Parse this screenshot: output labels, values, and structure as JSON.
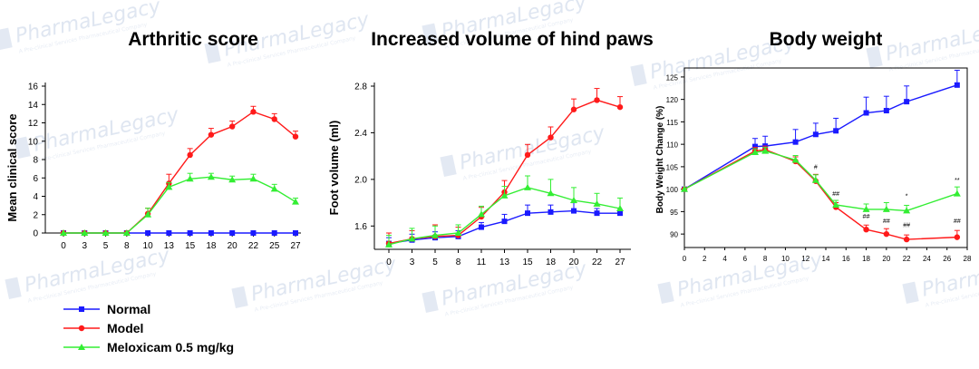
{
  "watermark": {
    "brand": "PharmaLegacy",
    "tagline": "A Pre-clinical Services Pharmaceutical Company"
  },
  "series_colors": {
    "Normal": "#1a1aff",
    "Model": "#ff1a1a",
    "Meloxicam 0.5 mg/kg": "#33ee33"
  },
  "legend": [
    {
      "name": "Normal",
      "marker": "square",
      "color": "#1a1aff"
    },
    {
      "name": "Model",
      "marker": "circle",
      "color": "#ff1a1a"
    },
    {
      "name": "Meloxicam 0.5 mg/kg",
      "marker": "triangle",
      "color": "#33ee33"
    }
  ],
  "chart_data": [
    {
      "type": "line",
      "title": "Arthritic score",
      "ylabel": "Mean clinical score",
      "xlabel": "",
      "x_scale": "categorical",
      "x": [
        "0",
        "3",
        "5",
        "8",
        "10",
        "13",
        "15",
        "18",
        "20",
        "22",
        "25",
        "27"
      ],
      "yticks": [
        "0",
        "2",
        "4",
        "6",
        "8",
        "10",
        "12",
        "14",
        "16"
      ],
      "ylim": [
        0,
        16
      ],
      "series": [
        {
          "name": "Normal",
          "marker": "square",
          "values": [
            0,
            0,
            0,
            0,
            0,
            0,
            0,
            0,
            0,
            0,
            0,
            0
          ],
          "err": [
            0,
            0,
            0,
            0,
            0,
            0,
            0,
            0,
            0,
            0,
            0,
            0
          ]
        },
        {
          "name": "Model",
          "marker": "circle",
          "values": [
            0,
            0,
            0,
            0,
            2.1,
            5.4,
            8.5,
            10.7,
            11.6,
            13.2,
            12.4,
            10.5
          ],
          "err": [
            0,
            0,
            0,
            0,
            0.6,
            1.0,
            0.7,
            0.7,
            0.6,
            0.6,
            0.6,
            0.6
          ]
        },
        {
          "name": "Meloxicam 0.5 mg/kg",
          "marker": "triangle",
          "values": [
            0,
            0,
            0,
            0,
            2.0,
            5.0,
            5.9,
            6.1,
            5.8,
            5.9,
            4.8,
            3.4
          ],
          "err": [
            0,
            0,
            0,
            0,
            0.7,
            0.5,
            0.6,
            0.4,
            0.4,
            0.5,
            0.5,
            0.4
          ]
        }
      ]
    },
    {
      "type": "line",
      "title": "Increased volume of hind paws",
      "ylabel": "Foot volume (ml)",
      "xlabel": "",
      "x_scale": "categorical",
      "x": [
        "0",
        "3",
        "5",
        "8",
        "11",
        "13",
        "15",
        "18",
        "20",
        "22",
        "27"
      ],
      "yticks": [
        "1.6",
        "2.0",
        "2.4",
        "2.8"
      ],
      "ylim": [
        1.4,
        2.8
      ],
      "series": [
        {
          "name": "Normal",
          "marker": "square",
          "values": [
            1.45,
            1.48,
            1.5,
            1.51,
            1.59,
            1.64,
            1.71,
            1.72,
            1.73,
            1.71,
            1.71
          ],
          "err": [
            0.05,
            0.05,
            0.05,
            0.05,
            0.04,
            0.06,
            0.07,
            0.06,
            0.07,
            0.04,
            0.03
          ]
        },
        {
          "name": "Model",
          "marker": "circle",
          "values": [
            1.45,
            1.49,
            1.51,
            1.52,
            1.68,
            1.89,
            2.21,
            2.36,
            2.6,
            2.68,
            2.62
          ],
          "err": [
            0.09,
            0.07,
            0.1,
            0.07,
            0.08,
            0.1,
            0.09,
            0.09,
            0.09,
            0.1,
            0.09
          ]
        },
        {
          "name": "Meloxicam 0.5 mg/kg",
          "marker": "triangle",
          "values": [
            1.44,
            1.49,
            1.52,
            1.54,
            1.7,
            1.86,
            1.93,
            1.88,
            1.82,
            1.79,
            1.75
          ],
          "err": [
            0.08,
            0.09,
            0.08,
            0.07,
            0.07,
            0.08,
            0.1,
            0.12,
            0.11,
            0.09,
            0.09
          ]
        }
      ]
    },
    {
      "type": "line",
      "title": "Body weight",
      "ylabel": "Body Weight Change (%)",
      "xlabel": "",
      "x_scale": "linear",
      "xlim": [
        0,
        28
      ],
      "xticks": [
        "0",
        "2",
        "4",
        "6",
        "8",
        "10",
        "12",
        "14",
        "16",
        "18",
        "20",
        "22",
        "24",
        "26",
        "28"
      ],
      "yticks": [
        "90",
        "95",
        "100",
        "105",
        "110",
        "115",
        "120",
        "125"
      ],
      "ylim": [
        87,
        127
      ],
      "series": [
        {
          "name": "Normal",
          "marker": "square",
          "x": [
            0,
            7,
            8,
            11,
            13,
            15,
            18,
            20,
            22,
            27
          ],
          "values": [
            100,
            109.5,
            109.6,
            110.5,
            112.2,
            113.0,
            117.0,
            117.5,
            119.5,
            123.2
          ],
          "err": [
            0,
            1.8,
            2.2,
            2.8,
            2.5,
            2.8,
            3.5,
            3.2,
            3.5,
            3.3
          ]
        },
        {
          "name": "Model",
          "marker": "circle",
          "x": [
            0,
            7,
            8,
            11,
            13,
            15,
            18,
            20,
            22,
            27
          ],
          "values": [
            100,
            108.5,
            108.8,
            106.2,
            101.8,
            96.0,
            91.0,
            90.0,
            88.8,
            89.3
          ],
          "err": [
            0,
            0.8,
            0.8,
            1.0,
            1.5,
            1.0,
            1.0,
            1.2,
            1.0,
            1.5
          ]
        },
        {
          "name": "Meloxicam 0.5 mg/kg",
          "marker": "triangle",
          "x": [
            0,
            7,
            8,
            11,
            13,
            15,
            18,
            20,
            22,
            27
          ],
          "values": [
            100,
            108.2,
            108.5,
            106.5,
            102.0,
            96.5,
            95.5,
            95.5,
            95.2,
            99.0
          ],
          "err": [
            0,
            0.8,
            0.8,
            1.0,
            1.2,
            1.0,
            1.2,
            1.5,
            1.2,
            1.5
          ]
        }
      ],
      "annotations": [
        {
          "x": 13,
          "y": 104.5,
          "text": "#"
        },
        {
          "x": 15,
          "y": 98.5,
          "text": "##"
        },
        {
          "x": 18,
          "y": 93.5,
          "text": "##"
        },
        {
          "x": 20,
          "y": 92.5,
          "text": "##"
        },
        {
          "x": 22,
          "y": 91.5,
          "text": "##"
        },
        {
          "x": 22,
          "y": 98.0,
          "text": "*"
        },
        {
          "x": 27,
          "y": 101.5,
          "text": "**"
        },
        {
          "x": 27,
          "y": 92.5,
          "text": "##"
        }
      ]
    }
  ]
}
